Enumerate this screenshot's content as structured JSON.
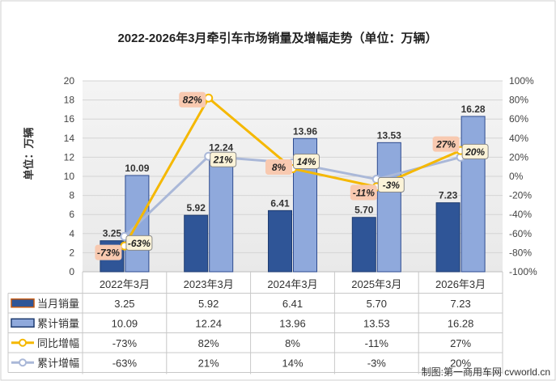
{
  "chart_data": {
    "type": "bar",
    "title": "2022-2026年3月牵引车市场销量及增幅走势（单位：万辆）",
    "ylabel": "单位：万辆",
    "categories": [
      "2022年3月",
      "2023年3月",
      "2024年3月",
      "2025年3月",
      "2026年3月"
    ],
    "ylim": [
      0,
      20
    ],
    "y_ticks": [
      "0",
      "2",
      "4",
      "6",
      "8",
      "10",
      "12",
      "14",
      "16",
      "18",
      "20"
    ],
    "y2lim": [
      -100,
      100
    ],
    "y2_ticks": [
      "-100%",
      "-80%",
      "-60%",
      "-40%",
      "-20%",
      "0%",
      "20%",
      "40%",
      "60%",
      "80%",
      "100%"
    ],
    "grid": true,
    "series": [
      {
        "name": "当月销量",
        "kind": "bar",
        "color": "#2f5597",
        "values": [
          3.25,
          5.92,
          6.41,
          5.7,
          7.23
        ],
        "labels": [
          "3.25",
          "5.92",
          "6.41",
          "5.70",
          "7.23"
        ]
      },
      {
        "name": "累计销量",
        "kind": "bar",
        "color": "#8fa9dc",
        "values": [
          10.09,
          12.24,
          13.96,
          13.53,
          16.28
        ],
        "labels": [
          "10.09",
          "12.24",
          "13.96",
          "13.53",
          "16.28"
        ]
      },
      {
        "name": "同比增幅",
        "kind": "line",
        "axis": "right",
        "color": "#f5b800",
        "values": [
          -73,
          82,
          8,
          -11,
          27
        ],
        "labels": [
          "-73%",
          "82%",
          "8%",
          "-11%",
          "27%"
        ]
      },
      {
        "name": "累计增幅",
        "kind": "line",
        "axis": "right",
        "color": "#aab8d8",
        "values": [
          -63,
          21,
          14,
          -3,
          20
        ],
        "labels": [
          "-63%",
          "21%",
          "14%",
          "-3%",
          "20%"
        ]
      }
    ],
    "source": "制图:第一商用车网 cvworld.cn"
  }
}
